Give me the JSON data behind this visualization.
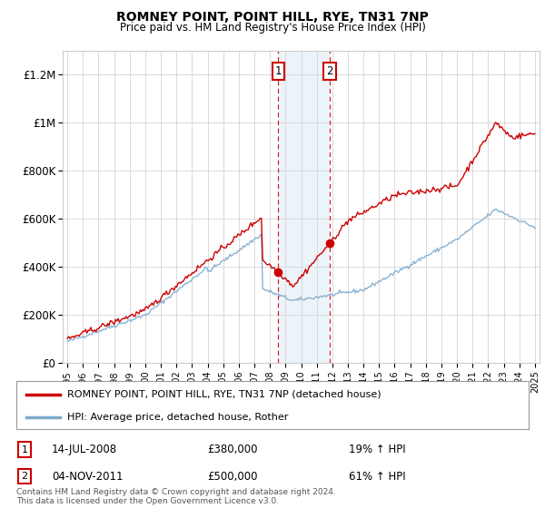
{
  "title": "ROMNEY POINT, POINT HILL, RYE, TN31 7NP",
  "subtitle": "Price paid vs. HM Land Registry's House Price Index (HPI)",
  "legend_line1": "ROMNEY POINT, POINT HILL, RYE, TN31 7NP (detached house)",
  "legend_line2": "HPI: Average price, detached house, Rother",
  "transaction1_date": "14-JUL-2008",
  "transaction1_price": 380000,
  "transaction1_label": "19% ↑ HPI",
  "transaction2_date": "04-NOV-2011",
  "transaction2_price": 500000,
  "transaction2_label": "61% ↑ HPI",
  "t1_x": 2008.54,
  "t2_x": 2011.84,
  "footnote": "Contains HM Land Registry data © Crown copyright and database right 2024.\nThis data is licensed under the Open Government Licence v3.0.",
  "red_color": "#cc0000",
  "blue_color": "#7faacc",
  "background_color": "#ffffff",
  "grid_color": "#cccccc",
  "marker_region_color": "#cce0f0",
  "ylim": [
    0,
    1300000
  ],
  "yticks": [
    0,
    200000,
    400000,
    600000,
    800000,
    1000000,
    1200000
  ],
  "ytick_labels": [
    "£0",
    "£200K",
    "£400K",
    "£600K",
    "£800K",
    "£1M",
    "£1.2M"
  ],
  "xlim_left": 1994.7,
  "xlim_right": 2025.3
}
